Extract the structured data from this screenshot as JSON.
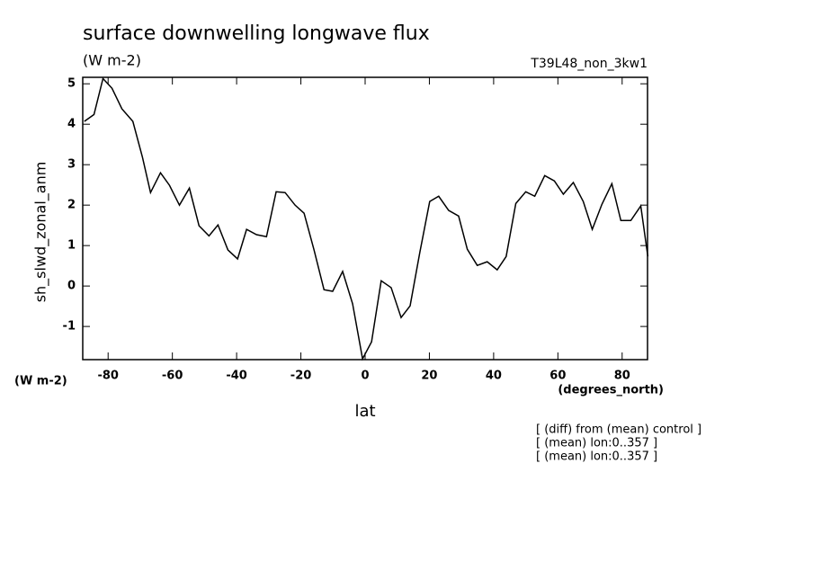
{
  "chart_data": {
    "type": "line",
    "title": "surface downwelling longwave flux",
    "units_top": "(W m-2)",
    "run_label": "T39L48_non_3kw1",
    "ylabel": "sh_slwd_zonal_anm",
    "units_left": "(W m-2)",
    "xunits": "(degrees_north)",
    "xlabel": "lat",
    "notes": [
      "[ (diff) from (mean) control ]",
      "[ (mean) lon:0..357 ]",
      "[ (mean) lon:0..357 ]"
    ],
    "x": [
      -87.4,
      -84.4,
      -81.6,
      -78.8,
      -75.7,
      -72.3,
      -69.3,
      -66.8,
      -63.7,
      -60.9,
      -57.8,
      -54.7,
      -51.7,
      -48.6,
      -45.8,
      -42.7,
      -39.7,
      -36.9,
      -33.8,
      -30.7,
      -27.7,
      -24.9,
      -21.8,
      -19.0,
      -15.9,
      -12.8,
      -10.1,
      -7.0,
      -3.9,
      -0.8,
      2.0,
      5.0,
      8.1,
      11.2,
      14.0,
      17.0,
      20.1,
      22.9,
      26.0,
      29.1,
      31.8,
      34.9,
      38.0,
      41.1,
      43.9,
      46.9,
      50.0,
      52.8,
      55.9,
      58.9,
      61.7,
      64.8,
      67.9,
      70.7,
      73.7,
      76.8,
      79.6,
      82.7,
      85.8,
      88.0
    ],
    "series": [
      {
        "name": "sh_slwd_zonal_anm",
        "color": "#000000",
        "values": [
          4.07,
          4.24,
          5.13,
          4.89,
          4.38,
          4.07,
          3.18,
          2.31,
          2.8,
          2.49,
          2.0,
          2.42,
          1.49,
          1.24,
          1.51,
          0.89,
          0.67,
          1.4,
          1.27,
          1.22,
          2.33,
          2.31,
          2.0,
          1.8,
          0.89,
          -0.09,
          -0.13,
          0.36,
          -0.44,
          -1.8,
          -1.38,
          0.13,
          -0.04,
          -0.78,
          -0.49,
          0.82,
          2.09,
          2.22,
          1.87,
          1.73,
          0.91,
          0.51,
          0.6,
          0.4,
          0.73,
          2.04,
          2.33,
          2.22,
          2.73,
          2.6,
          2.27,
          2.56,
          2.09,
          1.4,
          2.02,
          2.53,
          1.62,
          1.62,
          1.98,
          0.73
        ]
      }
    ],
    "xlim": [
      -87.9,
      87.9
    ],
    "ylim": [
      -1.82,
      5.16
    ],
    "xticks": [
      -80,
      -60,
      -40,
      -20,
      0,
      20,
      40,
      60,
      80
    ],
    "yticks": [
      -1,
      0,
      1,
      2,
      3,
      4,
      5
    ]
  }
}
